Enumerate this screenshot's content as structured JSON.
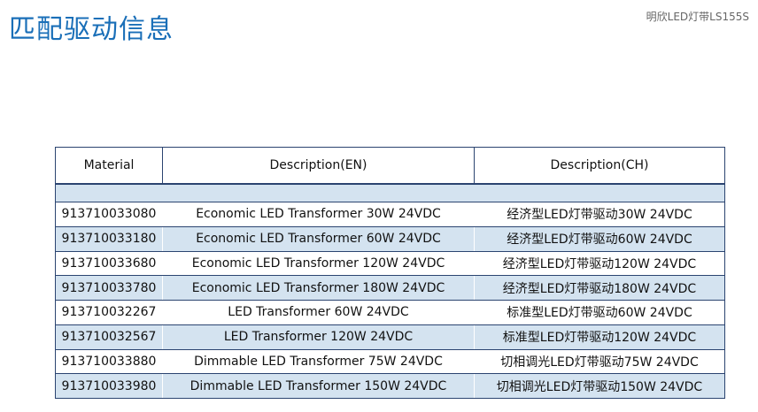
{
  "header": {
    "title": "匹配驱动信息",
    "product": "明欣LED灯带LS155S"
  },
  "table": {
    "columns": [
      "Material",
      "Description(EN)",
      "Description(CH)"
    ],
    "rows": [
      [
        "913710033080",
        "Economic LED Transformer 30W 24VDC",
        "经济型LED灯带驱动30W 24VDC"
      ],
      [
        "913710033180",
        "Economic LED Transformer 60W 24VDC",
        "经济型LED灯带驱动60W 24VDC"
      ],
      [
        "913710033680",
        "Economic LED Transformer 120W 24VDC",
        "经济型LED灯带驱动120W 24VDC"
      ],
      [
        "913710033780",
        "Economic LED Transformer 180W 24VDC",
        "经济型LED灯带驱动180W 24VDC"
      ],
      [
        "913710032267",
        "LED Transformer 60W 24VDC",
        "标准型LED灯带驱动60W 24VDC"
      ],
      [
        "913710032567",
        "LED Transformer 120W 24VDC",
        "标准型LED灯带驱动120W 24VDC"
      ],
      [
        "913710033880",
        "Dimmable LED Transformer 75W 24VDC",
        "切相调光LED灯带驱动75W 24VDC"
      ],
      [
        "913710033980",
        "Dimmable LED Transformer 150W 24VDC",
        "切相调光LED灯带驱动150W 24VDC"
      ]
    ]
  }
}
